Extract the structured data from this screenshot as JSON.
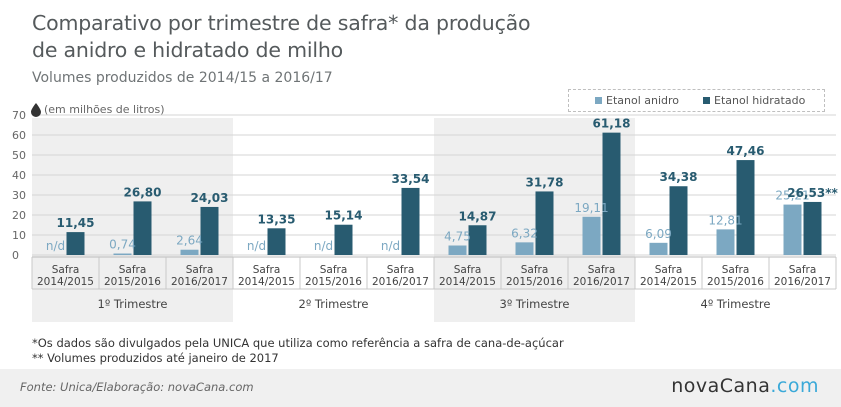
{
  "title_line1": "Comparativo por trimestre de safra* da produção",
  "title_line2": "de anidro e hidratado de milho",
  "subtitle": "Volumes produzidos de 2014/15 a 2016/17",
  "unit_label": "(em milhões de litros)",
  "footnote1": "*Os dados são divulgados pela UNICA que utiliza como referência a safra de cana-de-açúcar",
  "footnote2": "** Volumes produzidos até janeiro de 2017",
  "source": "Fonte:  Unica/Elaboração: novaCana.com",
  "logo_main": "novaCana",
  "logo_accent": ".com",
  "colors": {
    "anidro": "#7ca8c2",
    "hidratado": "#285b70",
    "band": "#efefef"
  },
  "chart_data": {
    "type": "bar",
    "ylim": [
      0,
      70
    ],
    "yticks": [
      0,
      10,
      20,
      30,
      40,
      50,
      60,
      70
    ],
    "grid": true,
    "legend_position": "top-right",
    "series": [
      {
        "name": "Etanol anidro",
        "values": [
          null,
          0.74,
          2.64,
          null,
          null,
          null,
          4.75,
          6.32,
          19.11,
          6.09,
          12.81,
          25.21
        ],
        "labels": [
          "n/d",
          "0,74",
          "2,64",
          "n/d",
          "n/d",
          "n/d",
          "4,75",
          "6,32",
          "19,11",
          "6,09",
          "12,81",
          "25,21"
        ]
      },
      {
        "name": "Etanol hidratado",
        "values": [
          11.45,
          26.8,
          24.03,
          13.35,
          15.14,
          33.54,
          14.87,
          31.78,
          61.18,
          34.38,
          47.46,
          26.53
        ],
        "labels": [
          "11,45",
          "26,80",
          "24,03",
          "13,35",
          "15,14",
          "33,54",
          "14,87",
          "31,78",
          "61,18",
          "34,38",
          "47,46",
          "26,53**"
        ]
      }
    ],
    "categories": [
      [
        "Safra",
        "2014/2015"
      ],
      [
        "Safra",
        "2015/2016"
      ],
      [
        "Safra",
        "2016/2017"
      ],
      [
        "Safra",
        "2014/2015"
      ],
      [
        "Safra",
        "2015/2016"
      ],
      [
        "Safra",
        "2016/2017"
      ],
      [
        "Safra",
        "2014/2015"
      ],
      [
        "Safra",
        "2015/2016"
      ],
      [
        "Safra",
        "2016/2017"
      ],
      [
        "Safra",
        "2014/2015"
      ],
      [
        "Safra",
        "2015/2016"
      ],
      [
        "Safra",
        "2016/2017"
      ]
    ],
    "groups": [
      "1º Trimestre",
      "2º Trimestre",
      "3º Trimestre",
      "4º Trimestre"
    ]
  }
}
